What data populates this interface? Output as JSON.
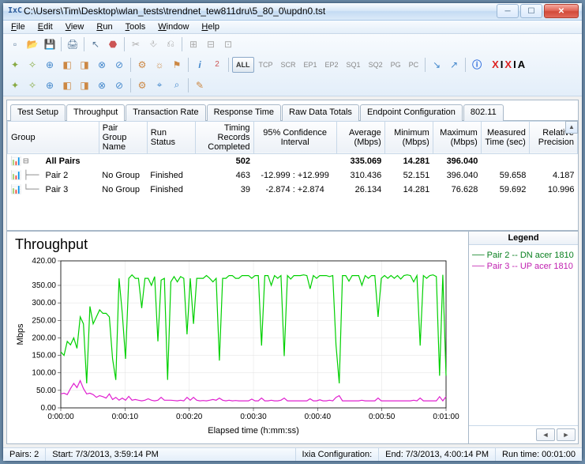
{
  "window": {
    "icon_text": "IxC",
    "title": "C:\\Users\\Tim\\Desktop\\wlan_tests\\trendnet_tew811dru\\5_80_0\\updn0.tst"
  },
  "menu": [
    "File",
    "Edit",
    "View",
    "Run",
    "Tools",
    "Window",
    "Help"
  ],
  "toolbar_row2": {
    "text_buttons": [
      "ALL",
      "TCP",
      "SCR",
      "EP1",
      "EP2",
      "SQ1",
      "SQ2",
      "PG",
      "PC"
    ],
    "brand_x": "X",
    "brand_i": "I",
    "brand_a": "A"
  },
  "tabs": [
    "Test Setup",
    "Throughput",
    "Transaction Rate",
    "Response Time",
    "Raw Data Totals",
    "Endpoint Configuration",
    "802.11"
  ],
  "active_tab": "Throughput",
  "table": {
    "columns": [
      "Group",
      "Pair Group Name",
      "Run Status",
      "Timing Records Completed",
      "95% Confidence Interval",
      "Average (Mbps)",
      "Minimum (Mbps)",
      "Maximum (Mbps)",
      "Measured Time (sec)",
      "Relative Precision"
    ],
    "rows": [
      {
        "bold": true,
        "icon": "📊",
        "tree": "⊟",
        "group": "All Pairs",
        "pair_group": "",
        "status": "",
        "timing": "502",
        "ci": "",
        "avg": "335.069",
        "min": "14.281",
        "max": "396.040",
        "time": "",
        "prec": ""
      },
      {
        "bold": false,
        "icon": "📊",
        "tree": "│",
        "group": "Pair 2",
        "pair_group": "No Group",
        "status": "Finished",
        "timing": "463",
        "ci": "-12.999 : +12.999",
        "avg": "310.436",
        "min": "52.151",
        "max": "396.040",
        "time": "59.658",
        "prec": "4.187"
      },
      {
        "bold": false,
        "icon": "📊",
        "tree": "└",
        "group": "Pair 3",
        "pair_group": "No Group",
        "status": "Finished",
        "timing": "39",
        "ci": "-2.874 : +2.874",
        "avg": "26.134",
        "min": "14.281",
        "max": "76.628",
        "time": "59.692",
        "prec": "10.996"
      }
    ]
  },
  "chart": {
    "title": "Throughput",
    "y_label": "Mbps",
    "x_label": "Elapsed time (h:mm:ss)",
    "y_min": 0,
    "y_max": 420,
    "y_ticks": [
      0.0,
      50.0,
      100.0,
      150.0,
      200.0,
      250.0,
      300.0,
      350.0,
      420.0
    ],
    "y_tick_labels": [
      "0.00",
      "50.00",
      "100.00",
      "150.00",
      "200.00",
      "250.00",
      "300.00",
      "350.00",
      "420.00"
    ],
    "x_ticks": [
      "0:00:00",
      "0:00:10",
      "0:00:20",
      "0:00:30",
      "0:00:40",
      "0:00:50",
      "0:01:00"
    ],
    "grid_color": "#e0e0e0",
    "bg_color": "#ffffff",
    "series": [
      {
        "name": "Pair 2 -- DN acer 1810",
        "color": "#00d000",
        "data": [
          160,
          150,
          190,
          180,
          200,
          170,
          260,
          240,
          70,
          290,
          240,
          260,
          280,
          270,
          270,
          260,
          140,
          80,
          370,
          270,
          140,
          370,
          380,
          370,
          370,
          285,
          370,
          370,
          350,
          375,
          190,
          365,
          370,
          80,
          360,
          375,
          360,
          375,
          370,
          210,
          370,
          240,
          370,
          370,
          370,
          378,
          370,
          360,
          370,
          135,
          370,
          370,
          378,
          378,
          370,
          370,
          378,
          378,
          378,
          370,
          378,
          378,
          178,
          378,
          378,
          350,
          378,
          370,
          378,
          148,
          378,
          368,
          378,
          378,
          378,
          380,
          378,
          340,
          378,
          370,
          378,
          378,
          378,
          375,
          378,
          180,
          70,
          378,
          378,
          362,
          378,
          378,
          378,
          350,
          378,
          370,
          378,
          378,
          260,
          370,
          378,
          370,
          378,
          370,
          378,
          368,
          378,
          380,
          378,
          360,
          378,
          178,
          378,
          370,
          378,
          380,
          375,
          92,
          380,
          92
        ]
      },
      {
        "name": "Pair 3 -- UP acer 1810",
        "color": "#e020d0",
        "data": [
          40,
          42,
          38,
          55,
          70,
          58,
          78,
          55,
          40,
          42,
          38,
          30,
          35,
          32,
          28,
          40,
          24,
          30,
          22,
          28,
          22,
          33,
          22,
          24,
          22,
          20,
          22,
          26,
          22,
          20,
          22,
          30,
          22,
          22,
          22,
          21,
          20,
          22,
          20,
          30,
          22,
          30,
          22,
          20,
          21,
          20,
          22,
          24,
          22,
          28,
          22,
          20,
          22,
          20,
          21,
          20,
          20,
          20,
          20,
          25,
          20,
          20,
          28,
          20,
          20,
          22,
          20,
          20,
          22,
          28,
          20,
          20,
          20,
          20,
          20,
          20,
          20,
          26,
          20,
          20,
          23,
          20,
          20,
          22,
          20,
          30,
          35,
          20,
          20,
          20,
          20,
          20,
          20,
          22,
          20,
          20,
          20,
          20,
          28,
          20,
          20,
          20,
          20,
          20,
          20,
          20,
          20,
          20,
          20,
          22,
          20,
          28,
          20,
          20,
          20,
          20,
          20,
          32,
          20,
          32
        ]
      }
    ]
  },
  "legend": {
    "header": "Legend",
    "items": [
      {
        "label": "Pair 2 -- DN acer 1810",
        "class": "pair2"
      },
      {
        "label": "Pair 3 -- UP acer 1810",
        "class": "pair3"
      }
    ]
  },
  "status": {
    "pairs": "Pairs: 2",
    "start": "Start: 7/3/2013, 3:59:14 PM",
    "ixia": "Ixia Configuration:",
    "end": "End: 7/3/2013, 4:00:14 PM",
    "runtime": "Run time:  00:01:00"
  }
}
